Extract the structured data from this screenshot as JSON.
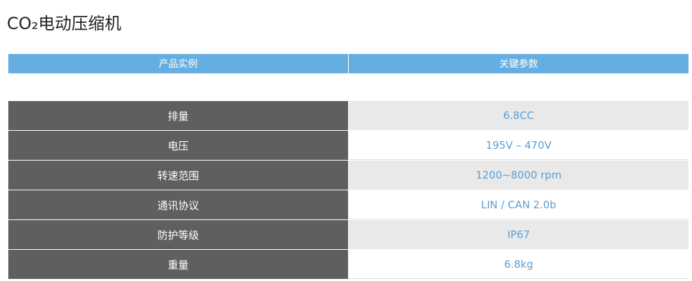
{
  "header": {
    "title": "CO₂电动压缩机"
  },
  "table": {
    "columns": [
      "产品实例",
      "关键参数"
    ],
    "rows": [
      [
        "排量",
        "6.8CC"
      ],
      [
        "电压",
        "195V – 470V"
      ],
      [
        "转速范围",
        "1200~8000 rpm"
      ],
      [
        "通讯协议",
        "LIN / CAN 2.0b"
      ],
      [
        "防护等级",
        "IP67"
      ],
      [
        "重量",
        "6.8kg"
      ]
    ]
  }
}
